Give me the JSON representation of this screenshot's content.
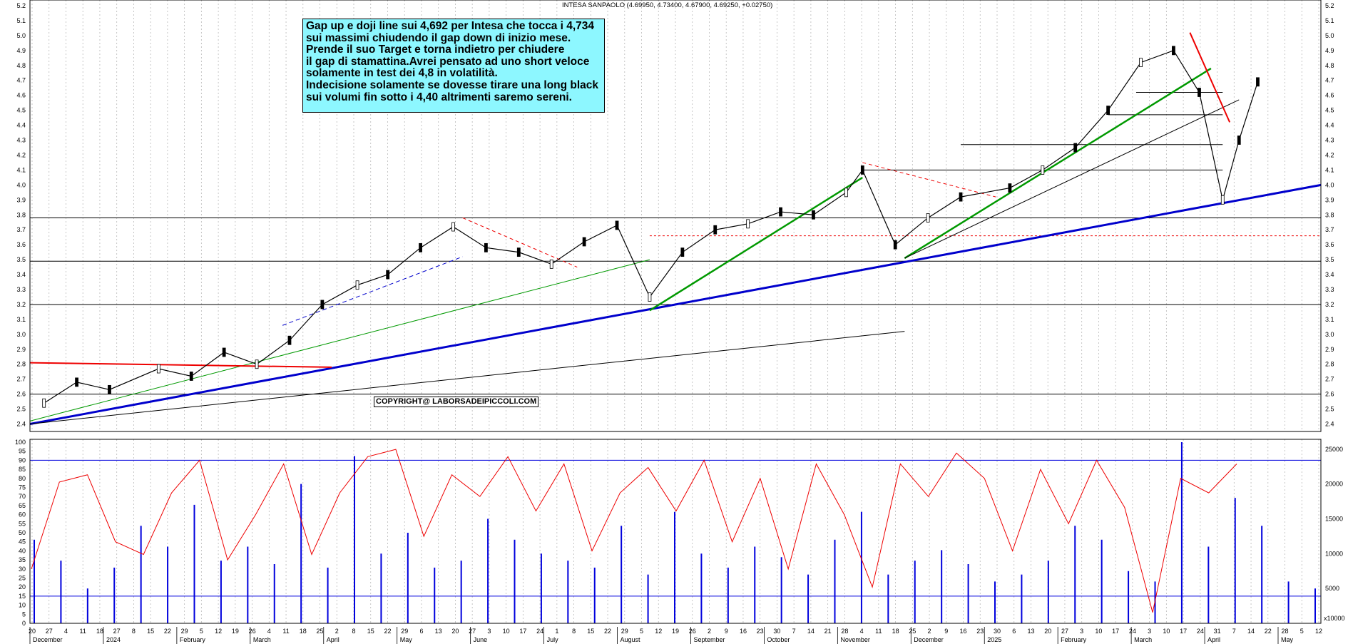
{
  "title": "INTESA SANPAOLO (4.69950, 4.73400, 4.67900, 4.69250, +0.02750)",
  "comment": {
    "lines": [
      "Gap up e doji line sui 4,692  per Intesa che tocca i 4,734",
      "sui massimi chiudendo il gap down di inizio mese.",
      "Prende il suo Target e torna indietro per chiudere",
      "il gap di stamattina.Avrei pensato ad uno short veloce",
      "solamente in test dei 4,8 in volatilità.",
      "Indecisione solamente se dovesse tirare una long black",
      "sui volumi fin sotto i 4,40 altrimenti saremo sereni."
    ]
  },
  "copyright": "COPYRIGHT@ LABORSADEIPICCOLI.COM",
  "colors": {
    "comment_bg": "#8df7ff",
    "support_blue": "#0000cc",
    "trend_green": "#009900",
    "resistance_red": "#ee0000",
    "oscillator_red": "#ee0000",
    "volume_blue": "#0000dd"
  },
  "chart_data": [
    {
      "type": "line",
      "name": "price",
      "ylim": [
        2.35,
        5.2
      ],
      "yticks": [
        "2.4",
        "2.5",
        "2.6",
        "2.7",
        "2.8",
        "2.9",
        "3.0",
        "3.1",
        "3.2",
        "3.3",
        "3.4",
        "3.5",
        "3.6",
        "3.7",
        "3.8",
        "3.9",
        "4.0",
        "4.1",
        "4.2",
        "4.3",
        "4.4",
        "4.5",
        "4.6",
        "4.7",
        "4.8",
        "4.9",
        "5.0",
        "5.1",
        "5.2"
      ],
      "x_day_labels": [
        "20",
        "27",
        "4",
        "11",
        "18",
        "27",
        "8",
        "15",
        "22",
        "29",
        "5",
        "12",
        "19",
        "26",
        "4",
        "11",
        "18",
        "25",
        "2",
        "8",
        "15",
        "22",
        "29",
        "6",
        "13",
        "20",
        "27",
        "3",
        "10",
        "17",
        "24",
        "1",
        "8",
        "15",
        "22",
        "29",
        "5",
        "12",
        "19",
        "26",
        "2",
        "9",
        "16",
        "23",
        "30",
        "7",
        "14",
        "21",
        "28",
        "4",
        "11",
        "18",
        "25",
        "2",
        "9",
        "16",
        "23",
        "30",
        "6",
        "13",
        "20",
        "27",
        "3",
        "10",
        "17",
        "24",
        "3",
        "10",
        "17",
        "24",
        "31",
        "7",
        "14",
        "22",
        "28",
        "5",
        "12"
      ],
      "month_labels": [
        "December",
        "2024",
        "February",
        "March",
        "April",
        "May",
        "June",
        "July",
        "August",
        "September",
        "October",
        "November",
        "December",
        "2025",
        "February",
        "March",
        "April",
        "May"
      ],
      "x": [
        "2023-11-20",
        "2023-12-04",
        "2023-12-18",
        "2024-01-08",
        "2024-01-22",
        "2024-02-05",
        "2024-02-19",
        "2024-03-04",
        "2024-03-18",
        "2024-04-02",
        "2024-04-15",
        "2024-04-29",
        "2024-05-13",
        "2024-05-27",
        "2024-06-10",
        "2024-06-24",
        "2024-07-08",
        "2024-07-22",
        "2024-08-05",
        "2024-08-19",
        "2024-09-02",
        "2024-09-16",
        "2024-09-30",
        "2024-10-14",
        "2024-10-28",
        "2024-11-04",
        "2024-11-18",
        "2024-12-02",
        "2024-12-16",
        "2025-01-06",
        "2025-01-20",
        "2025-02-03",
        "2025-02-17",
        "2025-03-03",
        "2025-03-17",
        "2025-03-28",
        "2025-04-07",
        "2025-04-14",
        "2025-04-22"
      ],
      "y": [
        2.54,
        2.68,
        2.63,
        2.77,
        2.72,
        2.88,
        2.8,
        2.96,
        3.2,
        3.33,
        3.4,
        3.58,
        3.72,
        3.58,
        3.55,
        3.47,
        3.62,
        3.73,
        3.25,
        3.55,
        3.7,
        3.74,
        3.82,
        3.8,
        3.95,
        4.1,
        3.6,
        3.78,
        3.92,
        3.98,
        4.1,
        4.25,
        4.5,
        4.82,
        4.9,
        4.62,
        3.9,
        4.3,
        4.69
      ],
      "horizontal_levels": [
        3.78,
        3.2,
        2.6,
        3.49,
        4.1,
        4.27,
        4.47,
        4.62
      ],
      "dotted_level": 3.66
    },
    {
      "type": "line",
      "name": "oscillator",
      "ylim": [
        0,
        100
      ],
      "yticks": [
        "0",
        "5",
        "10",
        "15",
        "20",
        "25",
        "30",
        "35",
        "40",
        "45",
        "50",
        "55",
        "60",
        "65",
        "70",
        "75",
        "80",
        "85",
        "90",
        "95",
        "100"
      ],
      "levels": [
        90,
        15
      ],
      "y": [
        30,
        78,
        82,
        45,
        38,
        72,
        90,
        35,
        60,
        88,
        38,
        72,
        92,
        96,
        48,
        82,
        70,
        92,
        62,
        88,
        40,
        72,
        86,
        62,
        90,
        45,
        80,
        30,
        88,
        60,
        20,
        88,
        70,
        94,
        80,
        40,
        85,
        55,
        90,
        64,
        6,
        80,
        72,
        88
      ]
    },
    {
      "type": "bar",
      "name": "volume",
      "ylim": [
        0,
        26000
      ],
      "right_ticks": [
        "5000",
        "10000",
        "15000",
        "20000",
        "25000"
      ],
      "unit_label": "x10000",
      "values": [
        12000,
        9000,
        5000,
        8000,
        14000,
        11000,
        17000,
        9000,
        11000,
        8500,
        20000,
        8000,
        24000,
        10000,
        13000,
        8000,
        9000,
        15000,
        12000,
        10000,
        9000,
        8000,
        14000,
        7000,
        16000,
        10000,
        8000,
        11000,
        9500,
        7000,
        12000,
        16000,
        7000,
        9000,
        10500,
        8500,
        6000,
        7000,
        9000,
        14000,
        12000,
        7500,
        6000,
        26000,
        11000,
        18000,
        14000,
        6000,
        5000
      ]
    }
  ]
}
